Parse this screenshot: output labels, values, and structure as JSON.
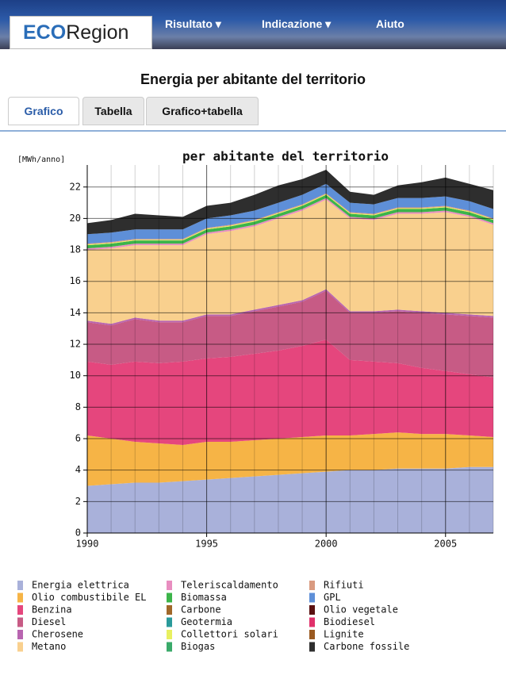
{
  "header": {
    "logo_a": "ECO",
    "logo_b": "Region",
    "nav": [
      "Risultato ▾",
      "Indicazione ▾",
      "Aiuto"
    ]
  },
  "page_title": "Energia per abitante del territorio",
  "tabs": [
    "Grafico",
    "Tabella",
    "Grafico+tabella"
  ],
  "chart_data": {
    "type": "stacked-area",
    "title": "per abitante del territorio",
    "y_label": "[MWh/anno]",
    "x": [
      1990,
      1991,
      1992,
      1993,
      1994,
      1995,
      1996,
      1997,
      1998,
      1999,
      2000,
      2001,
      2002,
      2003,
      2004,
      2005,
      2006,
      2007
    ],
    "xlim": [
      1990,
      2007
    ],
    "xticks": [
      1990,
      1995,
      2000,
      2005
    ],
    "ylim": [
      0,
      23.4
    ],
    "yticks": [
      0,
      2,
      4,
      6,
      8,
      10,
      12,
      14,
      16,
      18,
      20,
      22
    ],
    "grid": true,
    "series": [
      {
        "name": "Energia elettrica",
        "color": "#a9b1da",
        "values": [
          3.0,
          3.1,
          3.2,
          3.2,
          3.3,
          3.4,
          3.5,
          3.6,
          3.7,
          3.8,
          3.9,
          4.0,
          4.0,
          4.1,
          4.1,
          4.1,
          4.2,
          4.2
        ]
      },
      {
        "name": "Olio combustibile EL",
        "color": "#f6b446",
        "values": [
          3.2,
          2.9,
          2.6,
          2.5,
          2.3,
          2.4,
          2.3,
          2.3,
          2.3,
          2.3,
          2.3,
          2.2,
          2.3,
          2.3,
          2.2,
          2.2,
          2.0,
          1.9
        ]
      },
      {
        "name": "Benzina",
        "color": "#e5467d",
        "values": [
          4.7,
          4.7,
          5.1,
          5.1,
          5.3,
          5.3,
          5.4,
          5.5,
          5.6,
          5.8,
          6.1,
          4.8,
          4.6,
          4.4,
          4.2,
          4.0,
          3.9,
          3.8
        ]
      },
      {
        "name": "Diesel",
        "color": "#c75b85",
        "values": [
          2.5,
          2.5,
          2.7,
          2.6,
          2.5,
          2.7,
          2.6,
          2.7,
          2.8,
          2.8,
          3.1,
          3.0,
          3.1,
          3.3,
          3.5,
          3.6,
          3.7,
          3.8
        ]
      },
      {
        "name": "Cherosene",
        "color": "#b865b0",
        "values": [
          0.1,
          0.1,
          0.1,
          0.1,
          0.1,
          0.1,
          0.1,
          0.1,
          0.1,
          0.1,
          0.1,
          0.1,
          0.1,
          0.1,
          0.1,
          0.1,
          0.1,
          0.1
        ]
      },
      {
        "name": "Metano",
        "color": "#f9d08e",
        "values": [
          4.5,
          4.8,
          4.6,
          4.8,
          4.8,
          5.1,
          5.3,
          5.3,
          5.5,
          5.7,
          5.7,
          5.9,
          5.8,
          6.1,
          6.2,
          6.4,
          6.2,
          5.8
        ]
      },
      {
        "name": "Teleriscaldamento",
        "color": "#e88ec0",
        "values": [
          0.1,
          0.1,
          0.1,
          0.1,
          0.1,
          0.1,
          0.1,
          0.1,
          0.1,
          0.1,
          0.1,
          0.1,
          0.1,
          0.1,
          0.1,
          0.1,
          0.1,
          0.1
        ]
      },
      {
        "name": "Biomassa",
        "color": "#3cb44a",
        "values": [
          0.2,
          0.2,
          0.2,
          0.2,
          0.2,
          0.2,
          0.2,
          0.2,
          0.2,
          0.2,
          0.2,
          0.2,
          0.2,
          0.2,
          0.2,
          0.2,
          0.2,
          0.2
        ]
      },
      {
        "name": "Carbone",
        "color": "#a0682a",
        "values": [
          0,
          0,
          0,
          0,
          0,
          0,
          0,
          0,
          0,
          0,
          0,
          0,
          0,
          0,
          0,
          0,
          0,
          0
        ]
      },
      {
        "name": "Geotermia",
        "color": "#2a9a9a",
        "values": [
          0,
          0,
          0,
          0,
          0,
          0,
          0,
          0,
          0,
          0,
          0,
          0,
          0,
          0,
          0,
          0,
          0,
          0
        ]
      },
      {
        "name": "Collettori solari",
        "color": "#e8f060",
        "values": [
          0.05,
          0.05,
          0.05,
          0.05,
          0.05,
          0.05,
          0.05,
          0.05,
          0.05,
          0.05,
          0.05,
          0.05,
          0.05,
          0.05,
          0.05,
          0.05,
          0.05,
          0.05
        ]
      },
      {
        "name": "Biogas",
        "color": "#3aaa6a",
        "values": [
          0,
          0,
          0,
          0,
          0,
          0,
          0,
          0,
          0,
          0,
          0,
          0,
          0,
          0,
          0,
          0,
          0,
          0
        ]
      },
      {
        "name": "Rifiuti",
        "color": "#d99a80",
        "values": [
          0.05,
          0.05,
          0.05,
          0.05,
          0.05,
          0.05,
          0.05,
          0.05,
          0.05,
          0.05,
          0.05,
          0.05,
          0.05,
          0.05,
          0.05,
          0.05,
          0.05,
          0.05
        ]
      },
      {
        "name": "GPL",
        "color": "#5e8fd8",
        "values": [
          0.6,
          0.6,
          0.6,
          0.6,
          0.6,
          0.6,
          0.6,
          0.6,
          0.6,
          0.6,
          0.6,
          0.6,
          0.6,
          0.6,
          0.6,
          0.6,
          0.6,
          0.6
        ]
      },
      {
        "name": "Olio vegetale",
        "color": "#5a1010",
        "values": [
          0,
          0,
          0,
          0,
          0,
          0,
          0,
          0,
          0,
          0,
          0,
          0,
          0,
          0,
          0,
          0,
          0,
          0
        ]
      },
      {
        "name": "Biodiesel",
        "color": "#e0306a",
        "values": [
          0,
          0,
          0,
          0,
          0,
          0,
          0,
          0,
          0,
          0,
          0,
          0,
          0,
          0,
          0,
          0,
          0,
          0
        ]
      },
      {
        "name": "Lignite",
        "color": "#9a5a20",
        "values": [
          0,
          0,
          0,
          0,
          0,
          0,
          0,
          0,
          0,
          0,
          0,
          0,
          0,
          0,
          0,
          0,
          0,
          0
        ]
      },
      {
        "name": "Carbone fossile",
        "color": "#2e2e2e",
        "values": [
          0.7,
          0.8,
          1.0,
          0.9,
          0.8,
          0.8,
          0.8,
          1.0,
          1.1,
          1.0,
          0.9,
          0.7,
          0.6,
          0.8,
          1.0,
          1.2,
          1.1,
          1.2
        ]
      }
    ]
  }
}
